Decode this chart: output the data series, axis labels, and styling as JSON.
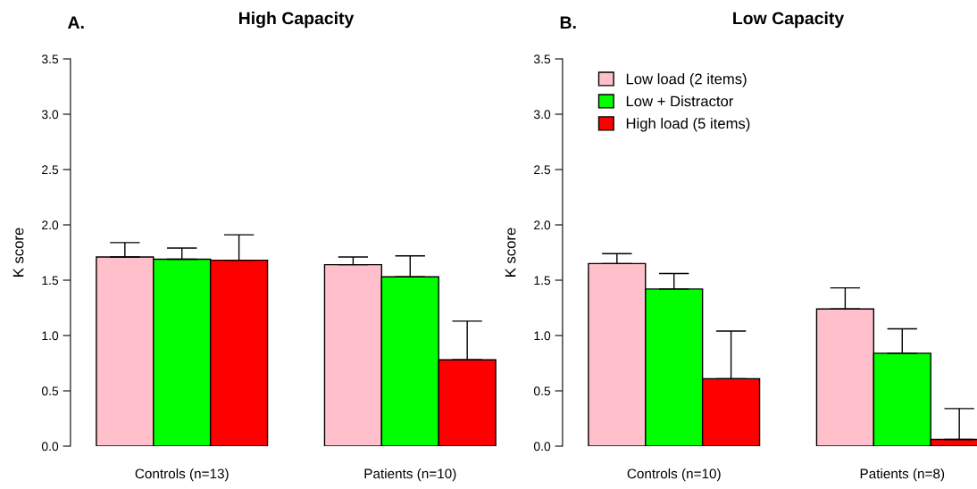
{
  "chart_data": [
    {
      "type": "bar",
      "title": "High Capacity",
      "ylabel": "K score",
      "annotations": [
        "A."
      ],
      "categories": [
        "Controls (n=13)",
        "Patients (n=10)"
      ],
      "ylim": [
        0,
        3.5
      ],
      "yticks": [
        {
          "value": 0,
          "label": "0.0"
        },
        {
          "value": 0.5,
          "label": "0.5"
        },
        {
          "value": 1,
          "label": "1.0"
        },
        {
          "value": 1.5,
          "label": "1.5"
        },
        {
          "value": 2,
          "label": "2.0"
        },
        {
          "value": 2.5,
          "label": "2.5"
        },
        {
          "value": 3,
          "label": "3.0"
        },
        {
          "value": 3.5,
          "label": "3.5"
        }
      ],
      "legend": false,
      "grid": false,
      "series": [
        {
          "color": "#ffc0cb",
          "values": [
            1.71,
            1.64
          ],
          "errors": [
            [
              1.71,
              1.84
            ],
            [
              1.64,
              1.71
            ]
          ]
        },
        {
          "color": "#00ff00",
          "values": [
            1.69,
            1.53
          ],
          "errors": [
            [
              1.69,
              1.79
            ],
            [
              1.53,
              1.72
            ]
          ]
        },
        {
          "color": "#ff0000",
          "values": [
            1.68,
            0.78
          ],
          "errors": [
            [
              1.68,
              1.91
            ],
            [
              0.78,
              1.13
            ]
          ]
        }
      ]
    },
    {
      "type": "bar",
      "title": "Low Capacity",
      "ylabel": "K score",
      "annotations": [
        "B."
      ],
      "categories": [
        "Controls (n=10)",
        "Patients (n=8)"
      ],
      "ylim": [
        0,
        3.5
      ],
      "yticks": [
        {
          "value": 0,
          "label": "0.0"
        },
        {
          "value": 0.5,
          "label": "0.5"
        },
        {
          "value": 1,
          "label": "1.0"
        },
        {
          "value": 1.5,
          "label": "1.5"
        },
        {
          "value": 2,
          "label": "2.0"
        },
        {
          "value": 2.5,
          "label": "2.5"
        },
        {
          "value": 3,
          "label": "3.0"
        },
        {
          "value": 3.5,
          "label": "3.5"
        }
      ],
      "legend": "top left",
      "grid": false,
      "series": [
        {
          "name": "Low load (2 items)",
          "color": "#ffc0cb",
          "values": [
            1.65,
            1.24
          ],
          "errors": [
            [
              1.65,
              1.74
            ],
            [
              1.24,
              1.43
            ]
          ]
        },
        {
          "name": "Low + Distractor",
          "color": "#00ff00",
          "values": [
            1.42,
            0.84
          ],
          "errors": [
            [
              1.42,
              1.56
            ],
            [
              0.84,
              1.06
            ]
          ]
        },
        {
          "name": "High load (5 items)",
          "color": "#ff0000",
          "values": [
            0.61,
            0.06
          ],
          "errors": [
            [
              0.61,
              1.04
            ],
            [
              0.06,
              0.34
            ]
          ]
        }
      ]
    }
  ]
}
